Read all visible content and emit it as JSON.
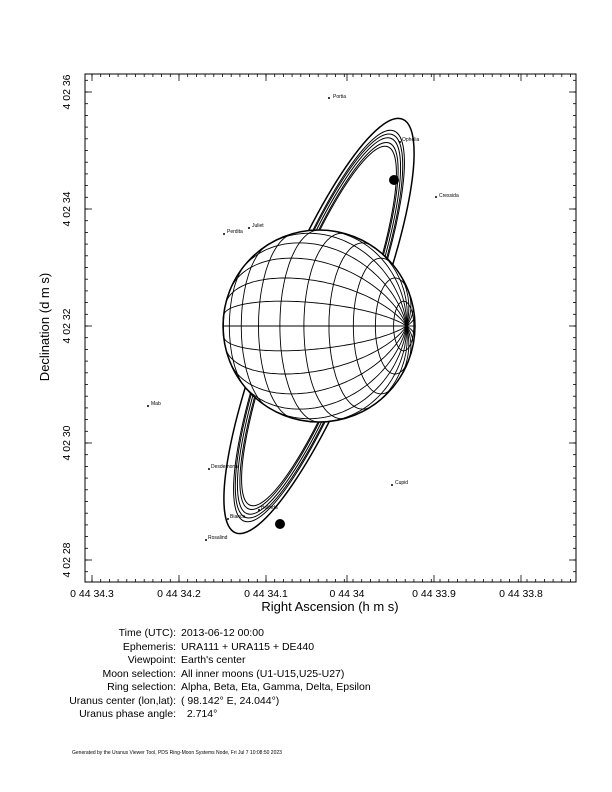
{
  "plot": {
    "xlabel": "Right Ascension (h m s)",
    "ylabel": "Declination (d m s)",
    "x_ticks": [
      "0 44 34.3",
      "0 44 34.2",
      "0 44 34.1",
      "0 44 34",
      "0 44 33.9",
      "0 44 33.8"
    ],
    "y_ticks": [
      "4 02 36",
      "4 02 34",
      "4 02 32",
      "4 02 30",
      "4 02 28"
    ],
    "moons": [
      {
        "name": "Portia"
      },
      {
        "name": "Ophelia"
      },
      {
        "name": "Cressida"
      },
      {
        "name": "Juliet"
      },
      {
        "name": "Perdita"
      },
      {
        "name": "Mab"
      },
      {
        "name": "Desdemona"
      },
      {
        "name": "Cupid"
      },
      {
        "name": "Belinda"
      },
      {
        "name": "Bianca"
      },
      {
        "name": "Rosalind"
      }
    ]
  },
  "info": [
    {
      "label": "Time (UTC):",
      "value": "2013-06-12 00:00"
    },
    {
      "label": "Ephemeris:",
      "value": "URA111 + URA115 + DE440"
    },
    {
      "label": "Viewpoint:",
      "value": "Earth's center"
    },
    {
      "label": "Moon selection:",
      "value": "All inner moons (U1-U15,U25-U27)"
    },
    {
      "label": "Ring selection:",
      "value": "Alpha, Beta, Eta, Gamma, Delta, Epsilon"
    },
    {
      "label": "Uranus center (lon,lat):",
      "value": "( 98.142° E, 24.044°)"
    },
    {
      "label": "Uranus phase angle:",
      "value": "  2.714°"
    }
  ],
  "footer": "Generated by the Uranus Viewer Tool, PDS Ring-Moon Systems Node, Fri Jul  7 10:08:50 2023"
}
